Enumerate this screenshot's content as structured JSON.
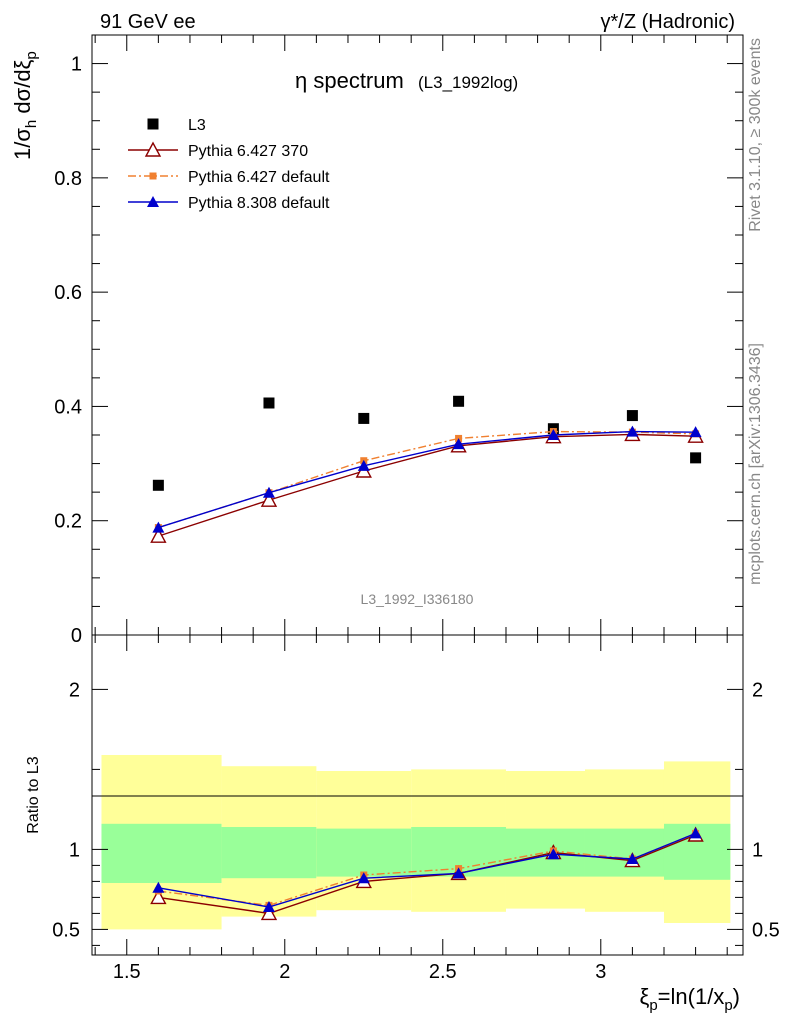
{
  "header": {
    "left": "91 GeV ee",
    "right": "γ*/Z (Hadronic)"
  },
  "side": {
    "rivet": "Rivet 3.1.10, ≥ 300k events",
    "mcplots": "mcplots.cern.ch [arXiv:1306.3436]"
  },
  "chart_data": [
    {
      "type": "scatter",
      "title": "η spectrum",
      "title_sub": "(L3_1992log)",
      "watermark": "L3_1992_I336180",
      "ylabel": "1/σ_h dσ/dξ_p",
      "xlim": [
        1.39,
        3.45
      ],
      "ylim": [
        0,
        1.05
      ],
      "yticks": [
        0,
        0.2,
        0.4,
        0.6,
        0.8,
        1
      ],
      "ytick_labels": [
        "0",
        "0.2",
        "0.4",
        "0.6",
        "0.8",
        "1"
      ],
      "legend_placement": "top-left",
      "x": [
        1.6,
        1.95,
        2.25,
        2.55,
        2.85,
        3.1,
        3.3
      ],
      "series": [
        {
          "name": "L3",
          "color": "#000000",
          "marker": "square",
          "values": [
            0.262,
            0.406,
            0.379,
            0.409,
            0.361,
            0.384,
            0.31
          ]
        },
        {
          "name": "Pythia 6.427 370",
          "color": "#8b0000",
          "marker": "open-triangle",
          "values": [
            0.173,
            0.236,
            0.287,
            0.331,
            0.347,
            0.351,
            0.348
          ]
        },
        {
          "name": "Pythia 6.427 default",
          "color": "#f08030",
          "marker": "small-square",
          "dash": "dashdot",
          "values": [
            0.188,
            0.249,
            0.305,
            0.344,
            0.356,
            0.355,
            0.352
          ]
        },
        {
          "name": "Pythia 8.308 default",
          "color": "#0000cc",
          "marker": "filled-triangle",
          "values": [
            0.188,
            0.249,
            0.296,
            0.334,
            0.35,
            0.356,
            0.355
          ]
        }
      ]
    },
    {
      "type": "line",
      "ylabel": "Ratio to L3",
      "xlabel": "ξ_p=ln(1/x_p)",
      "xlim": [
        1.39,
        3.45
      ],
      "ylim": [
        0.34,
        2.34
      ],
      "xticks": [
        1.5,
        2,
        2.5,
        3
      ],
      "xtick_labels": [
        "1.5",
        "2",
        "2.5",
        "3"
      ],
      "yticks": [
        0.5,
        1,
        2
      ],
      "ytick_labels": [
        "0.5",
        "1",
        "2"
      ],
      "x": [
        1.6,
        1.95,
        2.25,
        2.55,
        2.85,
        3.1,
        3.3
      ],
      "bands": {
        "colors": {
          "outer": "#ffff99",
          "inner": "#99ff99"
        },
        "bins": [
          {
            "lo": 1.42,
            "hi": 1.8,
            "outer": [
              0.5,
              1.59
            ],
            "inner": [
              0.79,
              1.16
            ]
          },
          {
            "lo": 1.8,
            "hi": 2.1,
            "outer": [
              0.58,
              1.52
            ],
            "inner": [
              0.82,
              1.14
            ]
          },
          {
            "lo": 2.1,
            "hi": 2.4,
            "outer": [
              0.62,
              1.49
            ],
            "inner": [
              0.83,
              1.13
            ]
          },
          {
            "lo": 2.4,
            "hi": 2.7,
            "outer": [
              0.61,
              1.5
            ],
            "inner": [
              0.83,
              1.14
            ]
          },
          {
            "lo": 2.7,
            "hi": 2.95,
            "outer": [
              0.63,
              1.49
            ],
            "inner": [
              0.83,
              1.13
            ]
          },
          {
            "lo": 2.95,
            "hi": 3.2,
            "outer": [
              0.61,
              1.5
            ],
            "inner": [
              0.83,
              1.13
            ]
          },
          {
            "lo": 3.2,
            "hi": 3.41,
            "outer": [
              0.54,
              1.55
            ],
            "inner": [
              0.81,
              1.16
            ]
          }
        ]
      },
      "series": [
        {
          "name": "Pythia 6.427 370",
          "color": "#8b0000",
          "marker": "open-triangle",
          "values": [
            0.7,
            0.6,
            0.8,
            0.85,
            0.98,
            0.93,
            1.09
          ]
        },
        {
          "name": "Pythia 6.427 default",
          "color": "#f08030",
          "marker": "small-square",
          "dash": "dashdot",
          "values": [
            0.74,
            0.65,
            0.84,
            0.88,
            0.99,
            0.94,
            1.1
          ]
        },
        {
          "name": "Pythia 8.308 default",
          "color": "#0000cc",
          "marker": "filled-triangle",
          "values": [
            0.76,
            0.64,
            0.82,
            0.85,
            0.97,
            0.94,
            1.1
          ]
        }
      ]
    }
  ]
}
